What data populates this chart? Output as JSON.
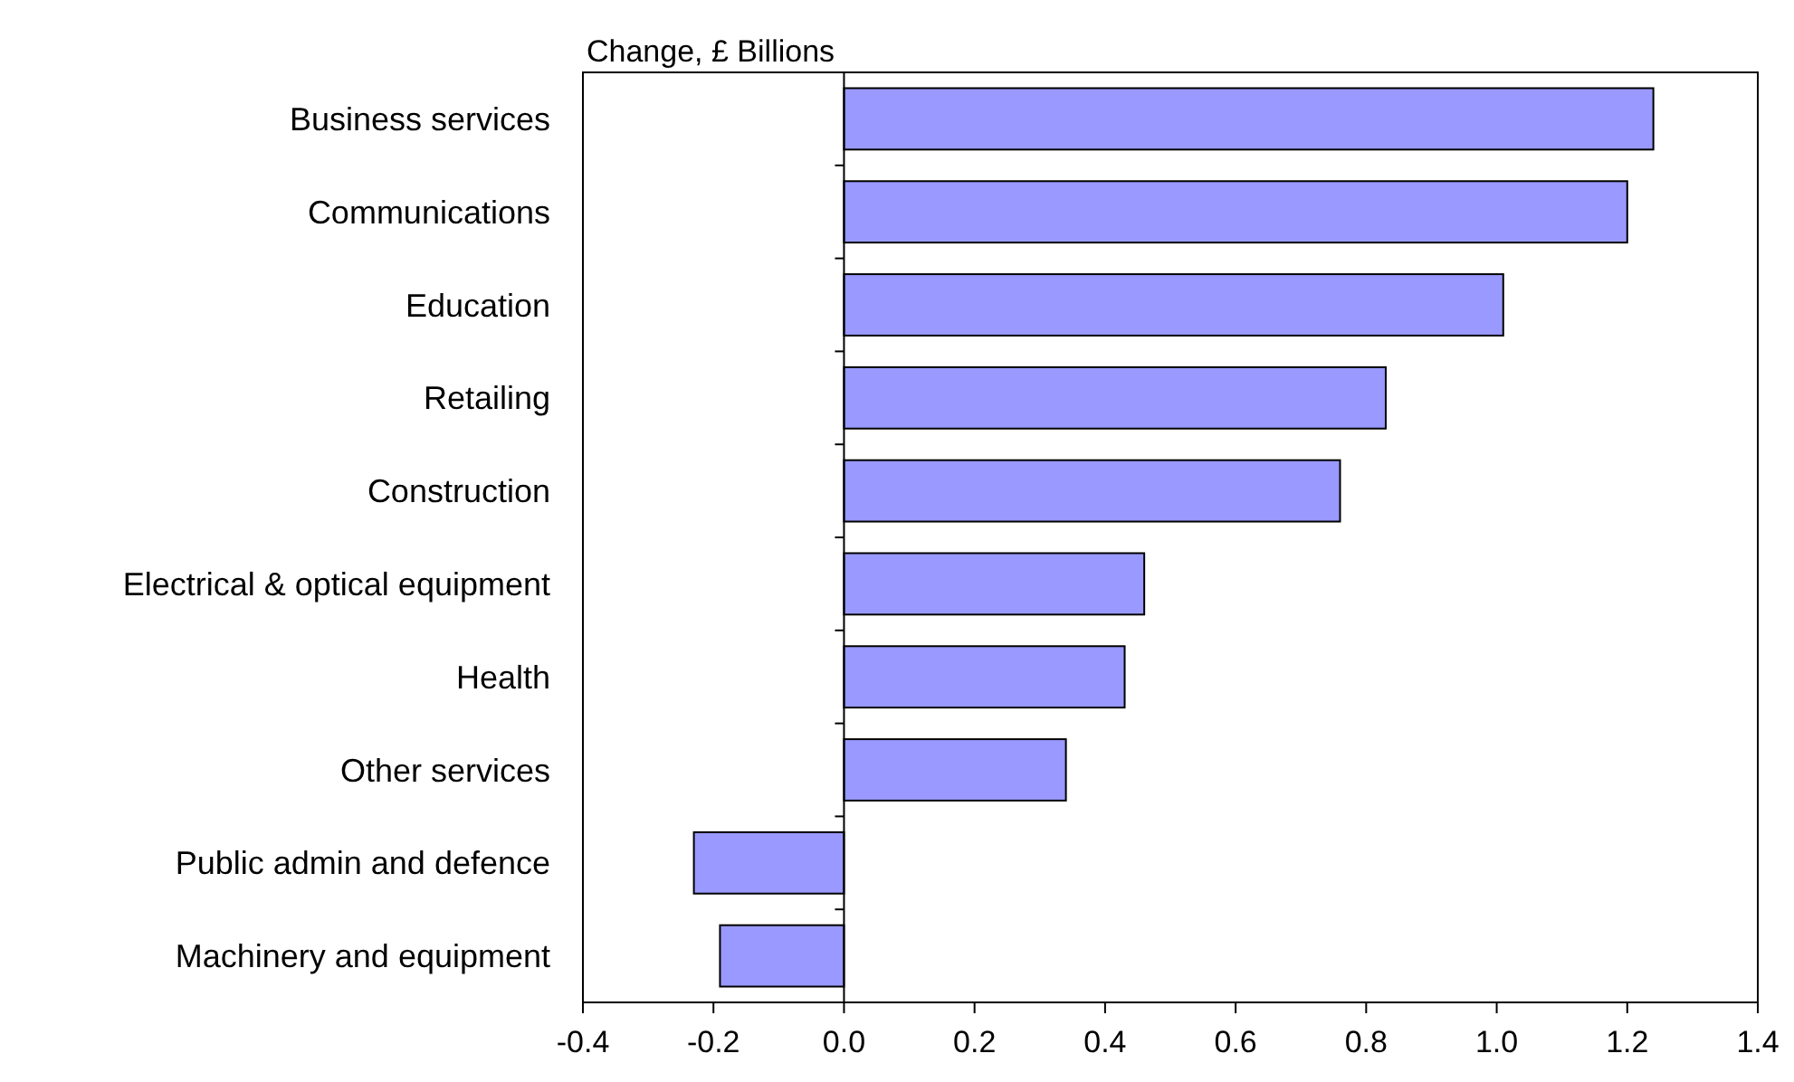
{
  "chart_data": {
    "type": "bar",
    "orientation": "horizontal",
    "title": "Change, £ Billions",
    "categories": [
      "Business services",
      "Communications",
      "Education",
      "Retailing",
      "Construction",
      "Electrical & optical equipment",
      "Health",
      "Other services",
      "Public admin and defence",
      "Machinery and equipment"
    ],
    "values": [
      1.24,
      1.2,
      1.01,
      0.83,
      0.76,
      0.46,
      0.43,
      0.34,
      -0.23,
      -0.19
    ],
    "color": "#9999ff",
    "xlim": [
      -0.4,
      1.4
    ],
    "xticks": [
      {
        "value": -0.4,
        "label": "-0.4"
      },
      {
        "value": -0.2,
        "label": "-0.2"
      },
      {
        "value": 0,
        "label": "0.0"
      },
      {
        "value": 0.2,
        "label": "0.2"
      },
      {
        "value": 0.4,
        "label": "0.4"
      },
      {
        "value": 0.6,
        "label": "0.6"
      },
      {
        "value": 0.8,
        "label": "0.8"
      },
      {
        "value": 1,
        "label": "1.0"
      },
      {
        "value": 1.2,
        "label": "1.2"
      },
      {
        "value": 1.4,
        "label": "1.4"
      }
    ]
  }
}
